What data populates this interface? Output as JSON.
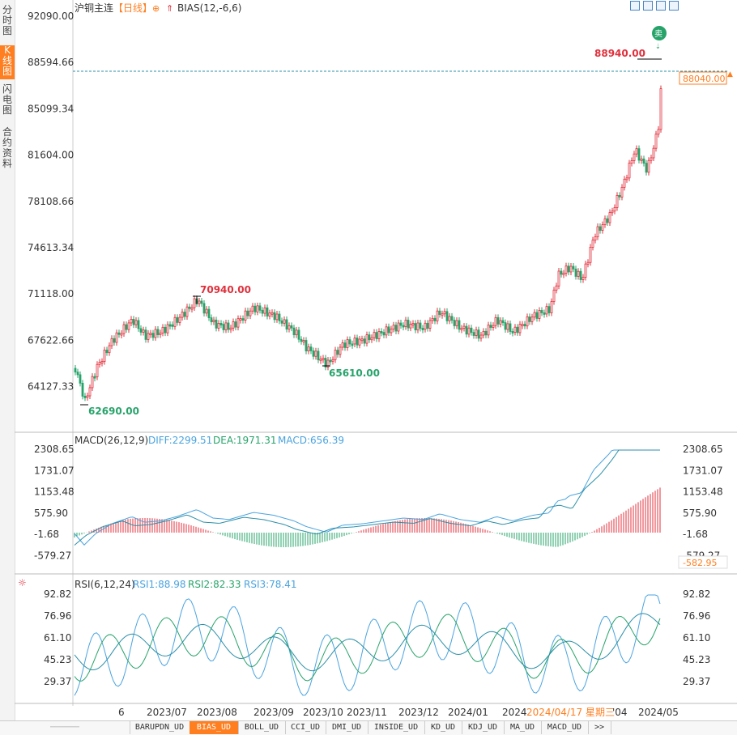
{
  "side_tabs": [
    "分时图",
    "K线图",
    "闪电图",
    "合约资料"
  ],
  "active_side_tab": 1,
  "header": {
    "symbol": "沪铜主连",
    "period": "【日线】",
    "indicator": "BIAS(12,-6,6)"
  },
  "main_chart": {
    "y_ticks": [
      "92090.00",
      "88594.66",
      "85099.34",
      "81604.00",
      "78108.66",
      "74613.34",
      "71118.00",
      "67622.66",
      "64127.33"
    ],
    "current_price_label": "88040.00",
    "max_label": "88940.00",
    "high_label": "70940.00",
    "low_label": "62690.00",
    "low2_label": "65610.00",
    "sell_marker": "卖"
  },
  "macd": {
    "title": "MACD(26,12,9)",
    "diff": "DIFF:2299.51",
    "dea": "DEA:1971.31",
    "macd": "MACD:656.39",
    "y_ticks": [
      "2308.65",
      "1731.07",
      "1153.48",
      "575.90",
      "-1.68",
      "-579.27"
    ],
    "right_value_label": "-582.95"
  },
  "rsi": {
    "title": "RSI(6,12,24)",
    "rsi1": "RSI1:88.98",
    "rsi2": "RSI2:82.33",
    "rsi3": "RSI3:78.41",
    "y_ticks": [
      "92.82",
      "76.96",
      "61.10",
      "45.23",
      "29.37"
    ]
  },
  "x_axis": {
    "labels": [
      "6",
      "2023/07",
      "2023/08",
      "2023/09",
      "2023/10",
      "2023/11",
      "2023/12",
      "2024/01",
      "2024",
      "'04",
      "2024/05"
    ],
    "hover_date": "2024/04/17 星期三"
  },
  "bottom_tabs": [
    "BARUPDN_UD",
    "BIAS_UD",
    "BOLL_UD",
    "CCI_UD",
    "DMI_UD",
    "INSIDE_UD",
    "KD_UD",
    "KDJ_UD",
    "MA_UD",
    "MACD_UD",
    ">>"
  ],
  "active_bottom_tab": 1,
  "colors": {
    "up": "#e0303c",
    "down": "#27a36a",
    "accent": "#ff7e1f",
    "line1": "#4aa3df",
    "line2": "#27a36a"
  }
}
